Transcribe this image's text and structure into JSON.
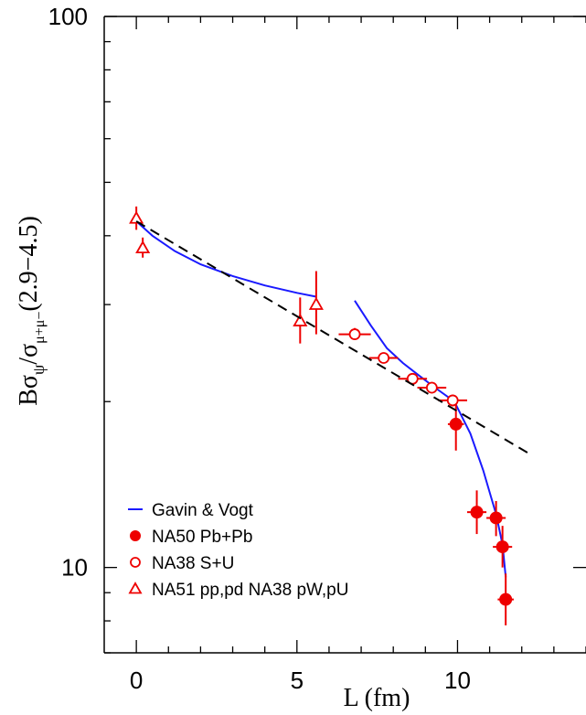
{
  "chart_data": {
    "type": "scatter",
    "xlabel": "L (fm)",
    "ylabel": {
      "main": "Bσ",
      "sub1": "ψ",
      "sep": "/σ",
      "sub2": "μ+μ−",
      "tail": "(2.9−4.5)"
    },
    "x_range": [
      -1,
      14
    ],
    "y_range": [
      7,
      100
    ],
    "y_scale": "log",
    "x_ticks": [
      0,
      5,
      10
    ],
    "y_ticks": [
      10,
      100
    ],
    "grid": false,
    "legend_position": "bottom-left",
    "series": [
      {
        "name": "Gavin & Vogt",
        "kind": "line",
        "color": "#1a1aff",
        "segments": [
          [
            [
              0.0,
              42.5
            ],
            [
              0.5,
              40.0
            ],
            [
              1.2,
              37.5
            ],
            [
              2.0,
              35.5
            ],
            [
              3.0,
              33.8
            ],
            [
              4.0,
              32.5
            ],
            [
              5.0,
              31.5
            ],
            [
              5.6,
              31.0
            ]
          ],
          [
            [
              6.8,
              30.5
            ],
            [
              7.3,
              27.5
            ],
            [
              7.8,
              25.0
            ],
            [
              8.3,
              23.5
            ],
            [
              8.8,
              22.3
            ],
            [
              9.3,
              21.2
            ],
            [
              9.9,
              20.0
            ],
            [
              10.4,
              17.5
            ],
            [
              10.8,
              15.0
            ],
            [
              11.2,
              12.5
            ],
            [
              11.4,
              11.0
            ],
            [
              11.5,
              9.6
            ]
          ]
        ]
      },
      {
        "name": "NA50 Pb+Pb",
        "kind": "filled-circle",
        "color": "#ee0000",
        "points": [
          {
            "x": 9.95,
            "y": 18.2,
            "xerr": 0.25,
            "yerr_lo": 1.9,
            "yerr_hi": 2.1
          },
          {
            "x": 10.6,
            "y": 12.6,
            "xerr": 0.3,
            "yerr_lo": 1.1,
            "yerr_hi": 1.2
          },
          {
            "x": 11.2,
            "y": 12.3,
            "xerr": 0.3,
            "yerr_lo": 0.9,
            "yerr_hi": 0.9
          },
          {
            "x": 11.4,
            "y": 10.9,
            "xerr": 0.3,
            "yerr_lo": 0.9,
            "yerr_hi": 1.0
          },
          {
            "x": 11.5,
            "y": 8.75,
            "xerr": 0.25,
            "yerr_lo": 0.9,
            "yerr_hi": 1.0
          }
        ]
      },
      {
        "name": "NA38 S+U",
        "kind": "open-circle",
        "color": "#ee0000",
        "points": [
          {
            "x": 6.8,
            "y": 26.5,
            "xerr": 0.5,
            "yerr_lo": 0.6,
            "yerr_hi": 0.7
          },
          {
            "x": 7.7,
            "y": 24.0,
            "xerr": 0.45,
            "yerr_lo": 0.5,
            "yerr_hi": 0.5
          },
          {
            "x": 8.6,
            "y": 22.0,
            "xerr": 0.45,
            "yerr_lo": 0.5,
            "yerr_hi": 0.5
          },
          {
            "x": 9.2,
            "y": 21.2,
            "xerr": 0.45,
            "yerr_lo": 0.5,
            "yerr_hi": 0.5
          },
          {
            "x": 9.85,
            "y": 20.1,
            "xerr": 0.45,
            "yerr_lo": 0.5,
            "yerr_hi": 0.5
          }
        ]
      },
      {
        "name": "NA51 pp,pd NA38 pW,pU",
        "kind": "open-triangle",
        "color": "#ee0000",
        "points": [
          {
            "x": 0.0,
            "y": 43.0,
            "xerr": 0.0,
            "yerr_lo": 2.0,
            "yerr_hi": 2.2
          },
          {
            "x": 0.2,
            "y": 38.0,
            "xerr": 0.0,
            "yerr_lo": 1.5,
            "yerr_hi": 1.7
          },
          {
            "x": 5.1,
            "y": 28.0,
            "xerr": 0.0,
            "yerr_lo": 2.5,
            "yerr_hi": 2.9
          },
          {
            "x": 5.6,
            "y": 30.0,
            "xerr": 0.0,
            "yerr_lo": 3.5,
            "yerr_hi": 4.5
          }
        ]
      },
      {
        "name": "",
        "kind": "dashed-line",
        "color": "#000000",
        "points": [
          [
            0.0,
            42.5
          ],
          [
            12.3,
            16.0
          ]
        ]
      }
    ]
  }
}
